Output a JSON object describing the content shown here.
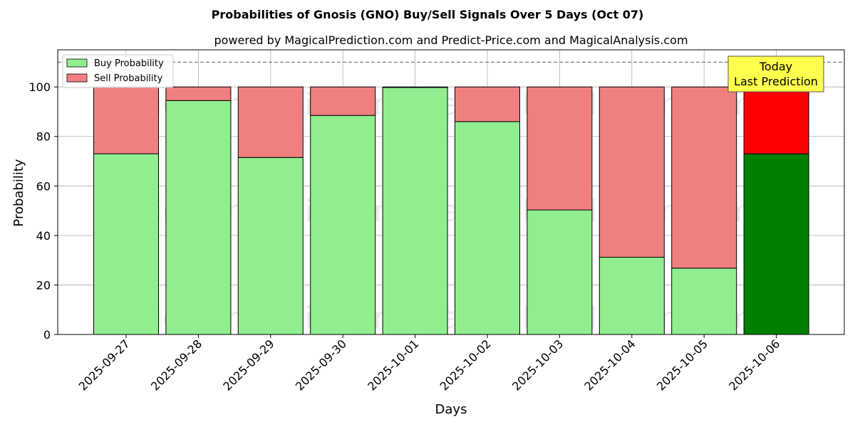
{
  "chart_data": {
    "type": "bar",
    "stacked": true,
    "title": "Probabilities of Gnosis (GNO) Buy/Sell Signals Over 5 Days (Oct 07)",
    "subtitle": "powered by MagicalPrediction.com and Predict-Price.com and MagicalAnalysis.com",
    "xlabel": "Days",
    "ylabel": "Probability",
    "ylim": [
      0,
      115
    ],
    "yticks": [
      0,
      20,
      40,
      60,
      80,
      100
    ],
    "grid": true,
    "legend_position": "top-left",
    "reference_line": 110,
    "categories": [
      "2025-09-27",
      "2025-09-28",
      "2025-09-29",
      "2025-09-30",
      "2025-10-01",
      "2025-10-02",
      "2025-10-03",
      "2025-10-04",
      "2025-10-05",
      "2025-10-06"
    ],
    "series": [
      {
        "name": "Buy Probability",
        "color": "#90ee90",
        "highlight_color": "#008000",
        "values": [
          73.0,
          94.5,
          71.5,
          88.5,
          99.8,
          86.0,
          50.3,
          31.2,
          26.8,
          73.0
        ]
      },
      {
        "name": "Sell Probability",
        "color": "#f08080",
        "highlight_color": "#ff0000",
        "values": [
          27.0,
          5.5,
          28.5,
          11.5,
          0.2,
          14.0,
          49.7,
          68.8,
          73.2,
          27.0
        ]
      }
    ],
    "highlight_index": 9,
    "annotation": {
      "lines": [
        "Today",
        "Last Prediction"
      ],
      "background": "#ffff4d"
    },
    "watermarks": [
      "MagicalAnalysis.com",
      "MagicalPrediction.com"
    ]
  }
}
